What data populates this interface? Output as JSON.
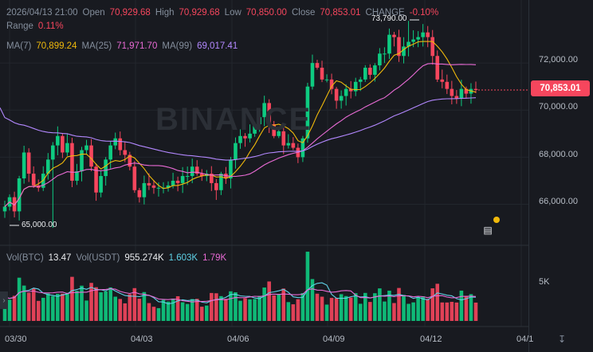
{
  "legend": {
    "date": "2026/04/13 21:00",
    "open_label": "Open",
    "open": "70,929.68",
    "high_label": "High",
    "high": "70,929.68",
    "low_label": "Low",
    "low": "70,850.00",
    "close_label": "Close",
    "close": "70,853.01",
    "change_label": "CHANGE",
    "change": "-0.10%",
    "range_label": "Range",
    "range": "0.11%"
  },
  "ma": {
    "ma7_label": "MA(7)",
    "ma7": "70,899.24",
    "ma25_label": "MA(25)",
    "ma25": "71,971.70",
    "ma99_label": "MA(99)",
    "ma99": "69,017.41"
  },
  "volume": {
    "vol_btc_label": "Vol(BTC)",
    "vol_btc": "13.47",
    "vol_usdt_label": "Vol(USDT)",
    "vol_usdt": "955.274K",
    "ma1": "1.603K",
    "ma2": "1.79K"
  },
  "price_axis": [
    "72,000.00",
    "70,000.00",
    "68,000.00",
    "66,000.00"
  ],
  "vol_axis": [
    "5K"
  ],
  "x_axis": [
    "03/30",
    "04/03",
    "04/06",
    "04/09",
    "04/12",
    "04/1"
  ],
  "current_price": "70,853.01",
  "high_marker": "73,790.00",
  "low_marker": "65,000.00",
  "watermark": "BINANCE",
  "colors": {
    "up": "#0ecb81",
    "down": "#f6465d",
    "ma7": "#f0b90b",
    "ma25": "#e96bd5",
    "ma99": "#b388ff",
    "vol_ma1": "#5fd3e8",
    "vol_ma2": "#e96bd5"
  },
  "icons": {
    "indicator": "indicator-icon",
    "reset": "reset-zoom-icon",
    "collapse": "chevron-right-icon"
  },
  "chart_data": {
    "type": "candlestick",
    "price_range": [
      64800,
      74000
    ],
    "volume_max": 9000,
    "closes": [
      65900,
      66300,
      65700,
      67100,
      68200,
      67300,
      66800,
      66700,
      67300,
      67900,
      68500,
      68900,
      68200,
      68600,
      67000,
      67400,
      68300,
      68500,
      67600,
      66500,
      67200,
      67900,
      68500,
      68800,
      68300,
      68100,
      67600,
      66600,
      66300,
      66900,
      66800,
      66700,
      66700,
      66700,
      66800,
      67000,
      66900,
      67200,
      67200,
      67600,
      67300,
      67200,
      67300,
      66900,
      66600,
      67300,
      67100,
      67900,
      68600,
      68900,
      68800,
      69000,
      69400,
      69700,
      70300,
      69400,
      68900,
      69100,
      68500,
      68600,
      68400,
      68000,
      68800,
      71000,
      72000,
      71800,
      71300,
      71300,
      70900,
      70400,
      70600,
      70900,
      70800,
      71200,
      71300,
      71800,
      71500,
      71900,
      72400,
      72400,
      73200,
      73100,
      72300,
      72700,
      72900,
      73000,
      73100,
      73300,
      73100,
      72300,
      71300,
      71200,
      70900,
      70600,
      70500,
      70900,
      70700,
      70900,
      70853
    ]
  }
}
